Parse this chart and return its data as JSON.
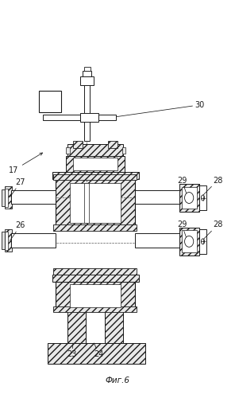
{
  "title": "Фиг.6",
  "bg_color": "#ffffff",
  "line_color": "#1a1a1a",
  "hatch_color": "#555555",
  "label_fontsize": 7,
  "title_fontsize": 7.5
}
